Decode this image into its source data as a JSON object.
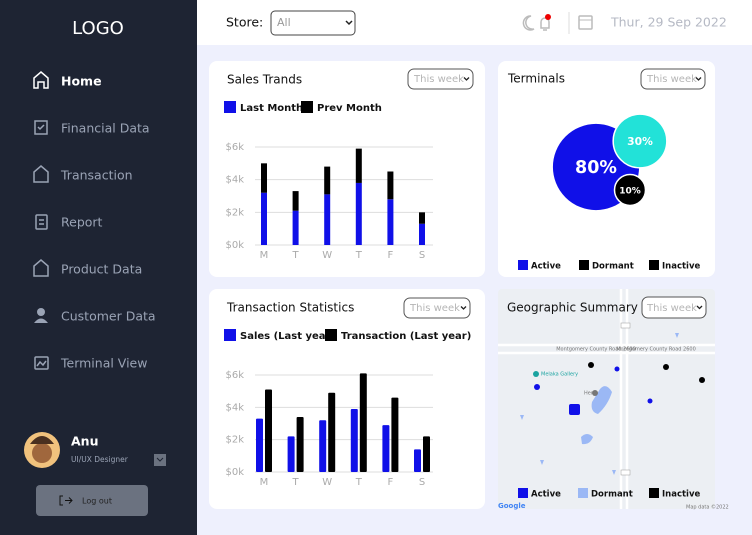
{
  "sidebar": {
    "logo": "LOGO",
    "nav": [
      "Home",
      "Financial Data",
      "Transaction",
      "Report",
      "Product Data",
      "Customer Data",
      "Terminal View"
    ],
    "user": {
      "name": "Anu",
      "role": "UI/UX Designer"
    },
    "logout": "Log out"
  },
  "topbar": {
    "store_label": "Store:",
    "store_value": "All",
    "date": "Thur, 29 Sep 2022"
  },
  "chart_data": [
    {
      "type": "stacked-bar",
      "title": "Sales Trands",
      "filter": "This week",
      "categories": [
        "M",
        "T",
        "W",
        "T",
        "F",
        "S"
      ],
      "series": [
        {
          "name": "Last Month",
          "color": "#1010e8",
          "values": [
            3.2,
            2.1,
            3.1,
            3.8,
            2.8,
            1.3
          ]
        },
        {
          "name": "Prev Month",
          "color": "#000000",
          "values": [
            1.8,
            1.2,
            1.7,
            2.1,
            1.7,
            0.7
          ]
        }
      ],
      "ylim": [
        0,
        6
      ],
      "yticks": [
        {
          "value": 0,
          "label": "$0k"
        },
        {
          "value": 2,
          "label": "$2k"
        },
        {
          "value": 4,
          "label": "$4k"
        },
        {
          "value": 6,
          "label": "$6k"
        }
      ],
      "grid": true
    },
    {
      "type": "bubble",
      "title": "Terminals",
      "filter": "This week",
      "categories": [
        "Active",
        "Dormant",
        "Inactive"
      ],
      "values": [
        80,
        30,
        10
      ],
      "value_labels": [
        "80%",
        "30%",
        "10%"
      ],
      "colors": [
        "#1010e8",
        "#22e2d8",
        "#000000"
      ],
      "legend_colors": [
        "#1010e8",
        "#000000",
        "#000000"
      ]
    },
    {
      "type": "grouped-bar",
      "title": "Transaction Statistics",
      "filter": "This week",
      "categories": [
        "M",
        "T",
        "W",
        "T",
        "F",
        "S"
      ],
      "series": [
        {
          "name": "Sales (Last year)",
          "color": "#1010e8",
          "values": [
            3.3,
            2.2,
            3.2,
            3.9,
            2.9,
            1.4
          ]
        },
        {
          "name": "Transaction (Last year)",
          "color": "#000000",
          "values": [
            5.1,
            3.4,
            4.9,
            6.1,
            4.6,
            2.2
          ]
        }
      ],
      "ylim": [
        0,
        6
      ],
      "yticks": [
        {
          "value": 0,
          "label": "$0k"
        },
        {
          "value": 2,
          "label": "$2k"
        },
        {
          "value": 4,
          "label": "$4k"
        },
        {
          "value": 6,
          "label": "$6k"
        }
      ],
      "grid": true
    }
  ],
  "geographic_summary": {
    "title": "Geographic Summary",
    "filter": "This week",
    "legend": [
      {
        "name": "Active",
        "color": "#1010e8"
      },
      {
        "name": "Dormant",
        "color": "#9bb8f5"
      },
      {
        "name": "Inactive",
        "color": "#000000"
      }
    ],
    "map_labels": [
      "Montgomery County Road 2600",
      "Montgomery County Road 2600",
      "Melaka Gallery",
      "Hertz",
      "Google",
      "Map data ©2022"
    ]
  }
}
